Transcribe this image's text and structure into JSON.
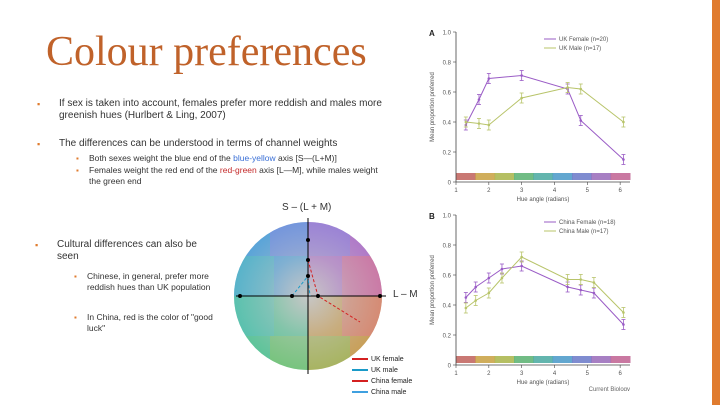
{
  "slide": {
    "title": "Colour preferences",
    "accent_color": "#e07b2e",
    "title_color": "#c0622a"
  },
  "bullets": {
    "b1": "If sex is taken into account, females prefer more reddish and males more greenish hues (Hurlbert & Ling, 2007)",
    "b2": "The differences can be understood in terms of channel weights",
    "b2_sub1_pre": "Both sexes weight the blue end of the ",
    "b2_sub1_colored": "blue-yellow",
    "b2_sub1_post": " axis [S—(L+M)]",
    "b2_sub2_pre": "Females weight the red end of the ",
    "b2_sub2_colored": "red-green",
    "b2_sub2_post": " axis [L—M], while males weight the green end",
    "b3": "Cultural differences can also be seen",
    "b3_sub1": "Chinese, in general, prefer more reddish hues than UK population",
    "b3_sub2": "In China, red is the color of \"good luck\""
  },
  "wheel": {
    "axis_vertical_label": "S – (L + M)",
    "axis_horizontal_label": "L – M"
  },
  "wheel_legend": [
    {
      "label": "UK female",
      "color": "#d42020"
    },
    {
      "label": "UK male",
      "color": "#1a9ac8"
    },
    {
      "label": "China female",
      "color": "#d42020"
    },
    {
      "label": "China male",
      "color": "#3fa0e0"
    }
  ],
  "chart_data": [
    {
      "type": "line",
      "panel_label": "A",
      "xlabel": "Hue angle (radians)",
      "ylabel": "Mean proportion preferred",
      "xlim": [
        1,
        6.3
      ],
      "ylim": [
        0,
        1.0
      ],
      "xticks": [
        "1",
        "2",
        "3",
        "4",
        "5",
        "6"
      ],
      "yticks": [
        "0",
        "0.2",
        "0.4",
        "0.6",
        "0.8",
        "1.0"
      ],
      "legend_position": "top-right",
      "series": [
        {
          "name": "UK Female (n=20)",
          "color": "#9a5cc6",
          "x": [
            1.3,
            1.7,
            2.0,
            3.0,
            4.4,
            4.8,
            6.1
          ],
          "y": [
            0.38,
            0.55,
            0.69,
            0.71,
            0.62,
            0.41,
            0.15
          ]
        },
        {
          "name": "UK Male (n=17)",
          "color": "#b8c46a",
          "x": [
            1.3,
            1.7,
            2.0,
            3.0,
            4.4,
            4.8,
            6.1
          ],
          "y": [
            0.4,
            0.39,
            0.38,
            0.56,
            0.63,
            0.62,
            0.4
          ]
        }
      ]
    },
    {
      "type": "line",
      "panel_label": "B",
      "xlabel": "Hue angle (radians)",
      "ylabel": "Mean proportion preferred",
      "xlim": [
        1,
        6.3
      ],
      "ylim": [
        0,
        1.0
      ],
      "xticks": [
        "1",
        "2",
        "3",
        "4",
        "5",
        "6"
      ],
      "yticks": [
        "0",
        "0.2",
        "0.4",
        "0.6",
        "0.8",
        "1.0"
      ],
      "legend_position": "top-right",
      "series": [
        {
          "name": "China Female (n=18)",
          "color": "#9a5cc6",
          "x": [
            1.3,
            1.6,
            2.0,
            2.4,
            3.0,
            4.4,
            4.8,
            5.2,
            6.1
          ],
          "y": [
            0.45,
            0.52,
            0.58,
            0.64,
            0.66,
            0.52,
            0.5,
            0.48,
            0.27
          ]
        },
        {
          "name": "China Male (n=17)",
          "color": "#b8c46a",
          "x": [
            1.3,
            1.6,
            2.0,
            2.4,
            3.0,
            4.4,
            4.8,
            5.2,
            6.1
          ],
          "y": [
            0.38,
            0.43,
            0.48,
            0.58,
            0.72,
            0.57,
            0.57,
            0.55,
            0.35
          ]
        }
      ],
      "source": "Current Biology"
    }
  ]
}
